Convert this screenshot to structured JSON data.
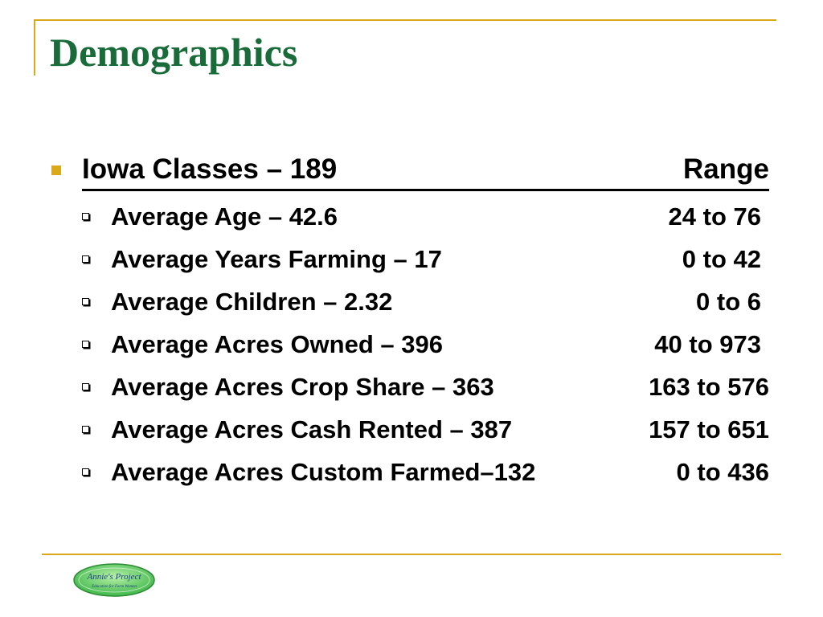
{
  "slide": {
    "title": "Demographics",
    "header": {
      "label": "Iowa Classes – 189",
      "range_label": "Range"
    },
    "items": [
      {
        "label": "Average Age – 42.6",
        "range": "24 to 76"
      },
      {
        "label": "Average Years Farming – 17",
        "range": "0 to 42"
      },
      {
        "label": "Average Children – 2.32",
        "range": "0 to 6"
      },
      {
        "label": "Average Acres Owned – 396",
        "range": "40 to 973"
      },
      {
        "label": "Average Acres Crop Share – 363",
        "range": "163 to 576"
      },
      {
        "label": "Average Acres Cash Rented – 387",
        "range": "157 to 651"
      },
      {
        "label": "Average Acres Custom Farmed–132",
        "range": "0 to 436"
      }
    ]
  },
  "logo": {
    "line1": "Annie's Project",
    "line2": "Education for Farm Women"
  },
  "colors": {
    "title": "#1a6b3a",
    "accent": "#d9a91a",
    "logo_fill": "#5cc85a"
  }
}
